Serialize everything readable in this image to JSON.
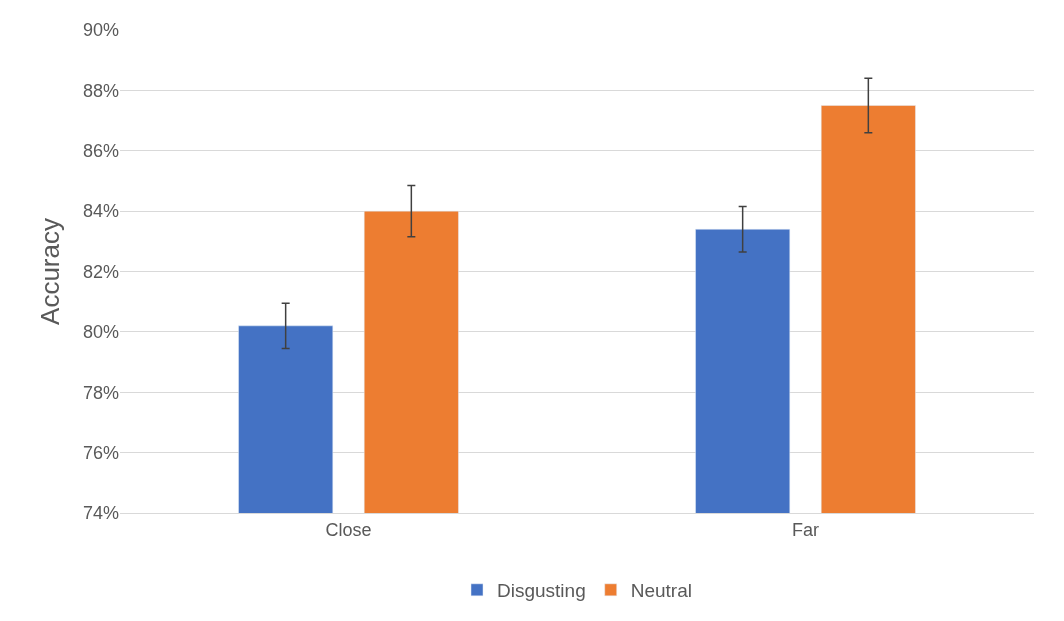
{
  "chart_data": {
    "type": "bar",
    "ylabel": "Accuracy",
    "categories": [
      "Close",
      "Far"
    ],
    "series": [
      {
        "name": "Disgusting",
        "color": "#4472c4",
        "values": [
          80.2,
          83.4
        ],
        "errors": [
          0.75,
          0.75
        ]
      },
      {
        "name": "Neutral",
        "color": "#ed7d31",
        "values": [
          84.0,
          87.5
        ],
        "errors": [
          0.85,
          0.9
        ]
      }
    ],
    "ylim": [
      74,
      90
    ],
    "yticks": [
      {
        "value": 74,
        "label": "74%"
      },
      {
        "value": 76,
        "label": "76%"
      },
      {
        "value": 78,
        "label": "78%"
      },
      {
        "value": 80,
        "label": "80%"
      },
      {
        "value": 82,
        "label": "82%"
      },
      {
        "value": 84,
        "label": "84%"
      },
      {
        "value": 86,
        "label": "86%"
      },
      {
        "value": 88,
        "label": "88%"
      },
      {
        "value": 90,
        "label": "90%"
      }
    ],
    "grid": "y",
    "legend": "bottom"
  }
}
